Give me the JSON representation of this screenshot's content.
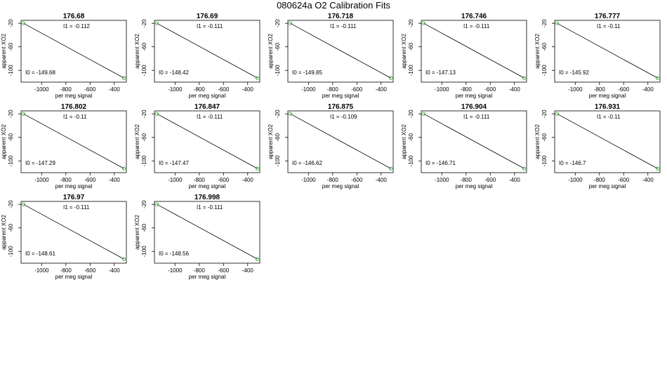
{
  "page": {
    "title": "080624a   O2 Calibration Fits"
  },
  "style": {
    "point_color": "#2ca02c",
    "line_color": "#000000"
  },
  "chart_data": [
    {
      "type": "scatter",
      "title": "176.68",
      "xlabel": "per meg signal",
      "ylabel": "apparent XO2",
      "xlim": [
        -1170,
        -300
      ],
      "ylim": [
        -120,
        -15
      ],
      "xticks": [
        -1000,
        -800,
        -600,
        -400
      ],
      "yticks": [
        -20,
        -60,
        -100
      ],
      "points": [
        {
          "x": -1150,
          "y": -20
        },
        {
          "x": -320,
          "y": -113
        }
      ],
      "fit": {
        "I0": -149.68,
        "I1": -0.112
      },
      "annotations": {
        "I1": "I1 =  -0.112",
        "I0": "I0 =  -149.68"
      }
    },
    {
      "type": "scatter",
      "title": "176.69",
      "xlabel": "per meg signal",
      "ylabel": "apparent XO2",
      "xlim": [
        -1170,
        -300
      ],
      "ylim": [
        -120,
        -15
      ],
      "xticks": [
        -1000,
        -800,
        -600,
        -400
      ],
      "yticks": [
        -20,
        -60,
        -100
      ],
      "points": [
        {
          "x": -1150,
          "y": -20
        },
        {
          "x": -320,
          "y": -113
        }
      ],
      "fit": {
        "I0": -148.42,
        "I1": -0.111
      },
      "annotations": {
        "I1": "I1 =  -0.111",
        "I0": "I0 =  -148.42"
      }
    },
    {
      "type": "scatter",
      "title": "176.718",
      "xlabel": "per meg signal",
      "ylabel": "apparent XO2",
      "xlim": [
        -1170,
        -300
      ],
      "ylim": [
        -120,
        -15
      ],
      "xticks": [
        -1000,
        -800,
        -600,
        -400
      ],
      "yticks": [
        -20,
        -60,
        -100
      ],
      "points": [
        {
          "x": -1150,
          "y": -20
        },
        {
          "x": -320,
          "y": -113
        }
      ],
      "fit": {
        "I0": -149.85,
        "I1": -0.111
      },
      "annotations": {
        "I1": "I1 =  -0.111",
        "I0": "I0 =  -149.85"
      }
    },
    {
      "type": "scatter",
      "title": "176.746",
      "xlabel": "per meg signal",
      "ylabel": "apparent XO2",
      "xlim": [
        -1170,
        -300
      ],
      "ylim": [
        -120,
        -15
      ],
      "xticks": [
        -1000,
        -800,
        -600,
        -400
      ],
      "yticks": [
        -20,
        -60,
        -100
      ],
      "points": [
        {
          "x": -1150,
          "y": -20
        },
        {
          "x": -320,
          "y": -113
        }
      ],
      "fit": {
        "I0": -147.13,
        "I1": -0.111
      },
      "annotations": {
        "I1": "I1 =  -0.111",
        "I0": "I0 =  -147.13"
      }
    },
    {
      "type": "scatter",
      "title": "176.777",
      "xlabel": "per meg signal",
      "ylabel": "apparent XO2",
      "xlim": [
        -1170,
        -300
      ],
      "ylim": [
        -120,
        -15
      ],
      "xticks": [
        -1000,
        -800,
        -600,
        -400
      ],
      "yticks": [
        -20,
        -60,
        -100
      ],
      "points": [
        {
          "x": -1150,
          "y": -20
        },
        {
          "x": -320,
          "y": -113
        }
      ],
      "fit": {
        "I0": -145.92,
        "I1": -0.11
      },
      "annotations": {
        "I1": "I1 =  -0.11",
        "I0": "I0 =  -145.92"
      }
    },
    {
      "type": "scatter",
      "title": "176.802",
      "xlabel": "per meg signal",
      "ylabel": "apparent XO2",
      "xlim": [
        -1170,
        -300
      ],
      "ylim": [
        -120,
        -15
      ],
      "xticks": [
        -1000,
        -800,
        -600,
        -400
      ],
      "yticks": [
        -20,
        -60,
        -100
      ],
      "points": [
        {
          "x": -1150,
          "y": -20
        },
        {
          "x": -320,
          "y": -113
        }
      ],
      "fit": {
        "I0": -147.29,
        "I1": -0.11
      },
      "annotations": {
        "I1": "I1 =  -0.11",
        "I0": "I0 =  -147.29"
      }
    },
    {
      "type": "scatter",
      "title": "176.847",
      "xlabel": "per meg signal",
      "ylabel": "apparent XO2",
      "xlim": [
        -1170,
        -300
      ],
      "ylim": [
        -120,
        -15
      ],
      "xticks": [
        -1000,
        -800,
        -600,
        -400
      ],
      "yticks": [
        -20,
        -60,
        -100
      ],
      "points": [
        {
          "x": -1150,
          "y": -20
        },
        {
          "x": -320,
          "y": -113
        }
      ],
      "fit": {
        "I0": -147.47,
        "I1": -0.111
      },
      "annotations": {
        "I1": "I1 =  -0.111",
        "I0": "I0 =  -147.47"
      }
    },
    {
      "type": "scatter",
      "title": "176.875",
      "xlabel": "per meg signal",
      "ylabel": "apparent XO2",
      "xlim": [
        -1170,
        -300
      ],
      "ylim": [
        -120,
        -15
      ],
      "xticks": [
        -1000,
        -800,
        -600,
        -400
      ],
      "yticks": [
        -20,
        -60,
        -100
      ],
      "points": [
        {
          "x": -1150,
          "y": -20
        },
        {
          "x": -320,
          "y": -113
        }
      ],
      "fit": {
        "I0": -146.62,
        "I1": -0.109
      },
      "annotations": {
        "I1": "I1 =  -0.109",
        "I0": "I0 =  -146.62"
      }
    },
    {
      "type": "scatter",
      "title": "176.904",
      "xlabel": "per meg signal",
      "ylabel": "apparent XO2",
      "xlim": [
        -1170,
        -300
      ],
      "ylim": [
        -120,
        -15
      ],
      "xticks": [
        -1000,
        -800,
        -600,
        -400
      ],
      "yticks": [
        -20,
        -60,
        -100
      ],
      "points": [
        {
          "x": -1150,
          "y": -20
        },
        {
          "x": -320,
          "y": -113
        }
      ],
      "fit": {
        "I0": -146.71,
        "I1": -0.111
      },
      "annotations": {
        "I1": "I1 =  -0.111",
        "I0": "I0 =  -146.71"
      }
    },
    {
      "type": "scatter",
      "title": "176.931",
      "xlabel": "per meg signal",
      "ylabel": "apparent XO2",
      "xlim": [
        -1170,
        -300
      ],
      "ylim": [
        -120,
        -15
      ],
      "xticks": [
        -1000,
        -800,
        -600,
        -400
      ],
      "yticks": [
        -20,
        -60,
        -100
      ],
      "points": [
        {
          "x": -1150,
          "y": -20
        },
        {
          "x": -320,
          "y": -113
        }
      ],
      "fit": {
        "I0": -146.7,
        "I1": -0.11
      },
      "annotations": {
        "I1": "I1 =  -0.11",
        "I0": "I0 =  -146.7"
      }
    },
    {
      "type": "scatter",
      "title": "176.97",
      "xlabel": "per meg signal",
      "ylabel": "apparent XO2",
      "xlim": [
        -1170,
        -300
      ],
      "ylim": [
        -120,
        -15
      ],
      "xticks": [
        -1000,
        -800,
        -600,
        -400
      ],
      "yticks": [
        -20,
        -60,
        -100
      ],
      "points": [
        {
          "x": -1150,
          "y": -20
        },
        {
          "x": -320,
          "y": -113
        }
      ],
      "fit": {
        "I0": -148.61,
        "I1": -0.111
      },
      "annotations": {
        "I1": "I1 =  -0.111",
        "I0": "I0 =  -148.61"
      }
    },
    {
      "type": "scatter",
      "title": "176.998",
      "xlabel": "per meg signal",
      "ylabel": "apparent XO2",
      "xlim": [
        -1170,
        -300
      ],
      "ylim": [
        -120,
        -15
      ],
      "xticks": [
        -1000,
        -800,
        -600,
        -400
      ],
      "yticks": [
        -20,
        -60,
        -100
      ],
      "points": [
        {
          "x": -1150,
          "y": -20
        },
        {
          "x": -320,
          "y": -113
        }
      ],
      "fit": {
        "I0": -148.56,
        "I1": -0.111
      },
      "annotations": {
        "I1": "I1 =  -0.111",
        "I0": "I0 =  -148.56"
      }
    }
  ]
}
